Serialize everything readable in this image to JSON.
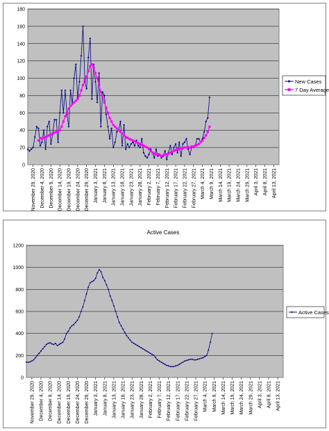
{
  "colors": {
    "plot_bg": "#c0c0c0",
    "new_cases": "#000080",
    "seven_day_avg": "#ff00ff",
    "active_cases": "#000080"
  },
  "x_tick_labels": [
    "November 29, 2020",
    "December 4, 2020",
    "December 9, 2020",
    "December 14, 2020",
    "December 19, 2020",
    "December 24, 2020",
    "December 29, 2020",
    "January 3, 2021",
    "January 8, 2021",
    "January 13, 2021",
    "January 18, 2021",
    "January 23, 2021",
    "January 28, 2021",
    "February 2, 2021",
    "February 7, 2021",
    "February 12, 2021",
    "February 17, 2021",
    "February 22, 2021",
    "February 27, 2021",
    "March 4, 2021",
    "March 9, 2021",
    "March 14, 2021",
    "March 19, 2021",
    "March 24, 2021",
    "March 29, 2021",
    "April 3, 2021",
    "April 8, 2021",
    "April 13, 2021"
  ],
  "chart_data": [
    {
      "type": "line",
      "title": "",
      "xlabel": "",
      "ylabel": "",
      "x_start": "2020-11-26",
      "x_end": "2021-04-16",
      "ylim": [
        0,
        180
      ],
      "yticks": [
        0,
        20,
        40,
        60,
        80,
        100,
        120,
        140,
        160,
        180
      ],
      "grid": true,
      "legend": "right",
      "series": [
        {
          "name": "New Cases",
          "values": [
            18,
            16,
            18,
            20,
            32,
            44,
            42,
            22,
            26,
            40,
            18,
            44,
            50,
            24,
            36,
            52,
            52,
            26,
            60,
            86,
            60,
            86,
            58,
            44,
            86,
            70,
            100,
            116,
            78,
            96,
            126,
            160,
            96,
            88,
            124,
            146,
            76,
            116,
            96,
            72,
            106,
            44,
            84,
            80,
            58,
            44,
            30,
            42,
            20,
            26,
            38,
            40,
            50,
            22,
            46,
            18,
            24,
            20,
            24,
            26,
            22,
            28,
            22,
            20,
            30,
            14,
            10,
            8,
            12,
            18,
            14,
            8,
            18,
            10,
            12,
            8,
            10,
            16,
            6,
            14,
            22,
            12,
            20,
            24,
            14,
            26,
            10,
            24,
            26,
            30,
            18,
            12,
            20,
            20,
            22,
            30,
            30,
            26,
            30,
            38,
            50,
            54,
            78
          ]
        },
        {
          "name": "7 Day Average",
          "values": [
            null,
            null,
            null,
            null,
            null,
            null,
            28,
            31,
            30,
            31,
            32,
            33,
            34,
            35,
            36,
            37,
            38,
            39,
            40,
            44,
            50,
            56,
            60,
            65,
            68,
            70,
            72,
            74,
            76,
            80,
            86,
            92,
            98,
            102,
            108,
            114,
            116,
            112,
            106,
            100,
            92,
            84,
            78,
            72,
            66,
            60,
            54,
            50,
            46,
            44,
            42,
            40,
            38,
            36,
            34,
            32,
            31,
            30,
            29,
            28,
            27,
            26,
            25,
            24,
            23,
            22,
            21,
            20,
            18,
            16,
            14,
            13,
            12,
            12,
            11,
            10,
            11,
            12,
            12,
            13,
            14,
            15,
            16,
            17,
            18,
            18,
            19,
            19,
            20,
            20,
            20,
            20,
            21,
            21,
            22,
            23,
            24,
            26,
            28,
            31,
            34,
            38,
            44
          ]
        }
      ]
    },
    {
      "type": "line",
      "title": "Active Cases",
      "xlabel": "",
      "ylabel": "",
      "x_start": "2020-11-26",
      "x_end": "2021-04-16",
      "ylim": [
        0,
        1200
      ],
      "yticks": [
        0,
        200,
        400,
        600,
        800,
        1000,
        1200
      ],
      "grid": true,
      "legend": "right",
      "series": [
        {
          "name": "Active Cases",
          "values": [
            140,
            138,
            142,
            150,
            160,
            180,
            200,
            220,
            240,
            260,
            280,
            300,
            310,
            315,
            305,
            300,
            310,
            290,
            300,
            310,
            320,
            350,
            400,
            420,
            450,
            470,
            480,
            500,
            520,
            550,
            600,
            640,
            700,
            760,
            820,
            860,
            870,
            880,
            900,
            950,
            980,
            960,
            910,
            880,
            840,
            800,
            740,
            700,
            650,
            600,
            550,
            500,
            470,
            440,
            410,
            380,
            360,
            340,
            320,
            310,
            300,
            290,
            280,
            270,
            260,
            250,
            240,
            230,
            220,
            210,
            200,
            180,
            160,
            150,
            140,
            130,
            120,
            110,
            105,
            100,
            98,
            100,
            105,
            110,
            120,
            130,
            140,
            150,
            155,
            160,
            165,
            165,
            160,
            160,
            165,
            170,
            175,
            180,
            190,
            200,
            250,
            320,
            400
          ]
        }
      ]
    }
  ]
}
